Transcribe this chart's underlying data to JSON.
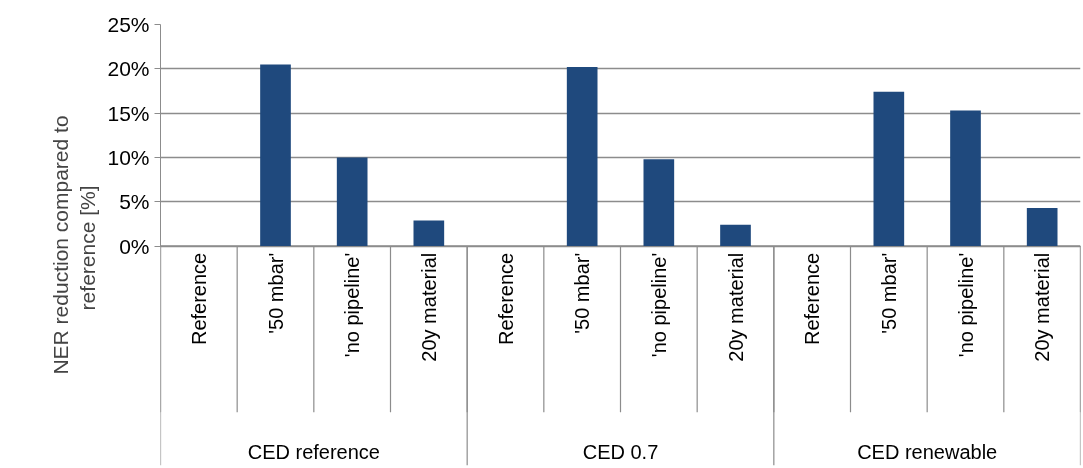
{
  "chart_data": {
    "type": "bar",
    "ylabel": "NER reduction compared to\nreference  [%]",
    "categories": [
      "Reference",
      "'50 mbar'",
      "'no pipeline'",
      "20y material",
      "Reference",
      "'50 mbar'",
      "'no pipeline'",
      "20y material",
      "Reference",
      "'50 mbar'",
      "'no pipeline'",
      "20y material"
    ],
    "values": [
      0,
      20.5,
      10.0,
      2.9,
      0,
      20.2,
      9.8,
      2.4,
      0,
      17.4,
      15.3,
      4.3
    ],
    "color": "#1f497d",
    "ylim": [
      0,
      25
    ],
    "yticks": [
      {
        "value": 0,
        "label": "0%"
      },
      {
        "value": 5,
        "label": "5%"
      },
      {
        "value": 10,
        "label": "10%"
      },
      {
        "value": 15,
        "label": "15%"
      },
      {
        "value": 20,
        "label": "20%"
      },
      {
        "value": 25,
        "label": "25%"
      }
    ],
    "grid": "y",
    "annotations": [
      "CED reference",
      "CED 0.7",
      "CED renewable"
    ]
  }
}
